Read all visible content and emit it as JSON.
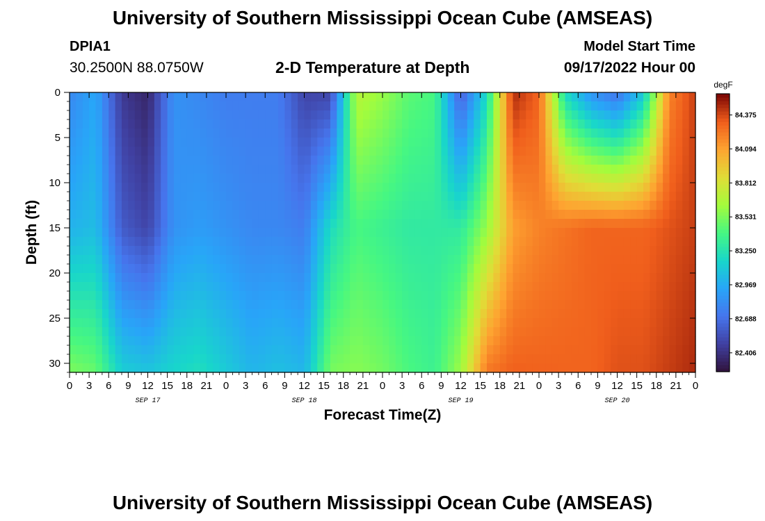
{
  "header": {
    "title": "University of Southern Mississippi Ocean Cube (AMSEAS)",
    "station_id": "DPIA1",
    "coords": "30.2500N  88.0750W",
    "subtitle": "2-D Temperature at Depth",
    "model_start_label": "Model Start Time",
    "model_start_value": "09/17/2022 Hour 00",
    "footer_title": "University of Southern Mississippi Ocean Cube (AMSEAS)"
  },
  "chart_data": {
    "type": "heatmap",
    "title": "2-D Temperature at Depth",
    "xlabel": "Forecast Time(Z)",
    "ylabel": "Depth (ft)",
    "x_range": [
      0,
      96
    ],
    "y_range": [
      0,
      31
    ],
    "x_tick_labels": [
      "0",
      "3",
      "6",
      "9",
      "12",
      "15",
      "18",
      "21",
      "0",
      "3",
      "6",
      "9",
      "12",
      "15",
      "18",
      "21",
      "0",
      "3",
      "6",
      "9",
      "12",
      "15",
      "18",
      "21",
      "0",
      "3",
      "6",
      "9",
      "12",
      "15",
      "18",
      "21",
      "0"
    ],
    "date_labels": [
      {
        "text": "SEP 17",
        "hour": 12
      },
      {
        "text": "SEP 18",
        "hour": 36
      },
      {
        "text": "SEP 19",
        "hour": 60
      },
      {
        "text": "SEP 20",
        "hour": 84
      }
    ],
    "y_ticks": [
      0,
      5,
      10,
      15,
      20,
      25,
      30
    ],
    "y_tick_labels": [
      "0",
      "5",
      "10",
      "15",
      "20",
      "25",
      "30"
    ],
    "colorbar": {
      "unit": "degF",
      "min": 82.25,
      "max": 84.55,
      "tick_labels": [
        "84.375",
        "84.094",
        "83.812",
        "83.531",
        "83.250",
        "82.969",
        "82.688",
        "82.406"
      ],
      "tick_values": [
        84.375,
        84.094,
        83.812,
        83.531,
        83.25,
        82.969,
        82.688,
        82.406
      ]
    },
    "approximate_temperature_by_hour": {
      "hours": [
        0,
        4,
        8,
        12,
        16,
        20,
        24,
        28,
        32,
        36,
        40,
        44,
        48,
        52,
        56,
        60,
        64,
        68,
        72,
        76,
        80,
        84,
        88,
        92,
        96
      ],
      "surface_degF": [
        82.8,
        82.95,
        82.45,
        82.35,
        82.85,
        82.8,
        82.75,
        82.75,
        82.75,
        82.5,
        82.5,
        83.7,
        83.6,
        83.45,
        83.4,
        82.6,
        83.2,
        84.45,
        84.3,
        83.2,
        82.85,
        82.7,
        83.1,
        84.2,
        84.4
      ],
      "mid_depth_15ft_degF": [
        83.0,
        83.05,
        82.6,
        82.5,
        82.85,
        82.9,
        82.85,
        82.8,
        82.8,
        82.75,
        83.2,
        83.4,
        83.35,
        83.3,
        83.3,
        83.3,
        83.6,
        84.1,
        84.2,
        84.25,
        84.3,
        84.3,
        84.3,
        84.35,
        84.4
      ],
      "bottom_30ft_degF": [
        83.5,
        83.45,
        83.1,
        83.05,
        83.15,
        83.2,
        83.1,
        83.0,
        83.05,
        83.0,
        83.5,
        83.55,
        83.5,
        83.4,
        83.35,
        83.6,
        84.2,
        84.3,
        84.3,
        84.3,
        84.3,
        84.35,
        84.35,
        84.4,
        84.45
      ]
    }
  }
}
